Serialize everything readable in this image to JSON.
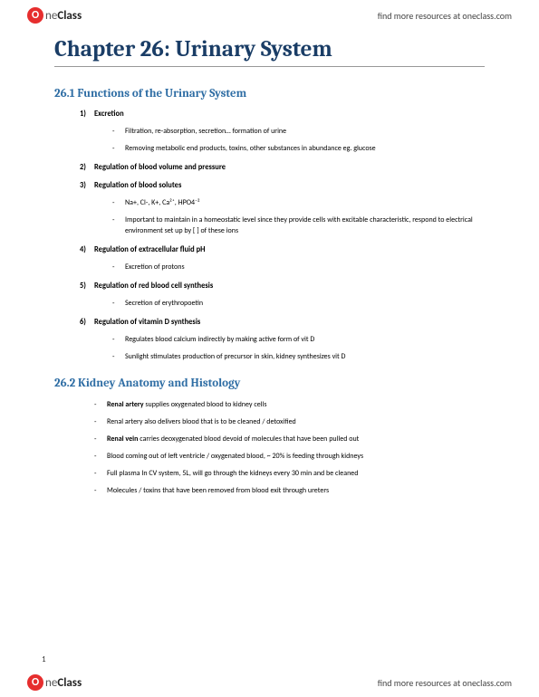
{
  "brand": {
    "icon_letter": "O",
    "name_prefix": "ne",
    "name_bold": "Class",
    "header_link": "find more resources at oneclass.com",
    "footer_link": "find more resources at oneclass.com"
  },
  "chapter_title": "Chapter 26: Urinary System",
  "section1": {
    "title": "26.1 Functions of the Urinary System",
    "items": [
      {
        "num": "1)",
        "label": "Excretion",
        "bullets": [
          "Filtration, re-absorption, secretion… formation of urine",
          "Removing metabolic end products, toxins, other substances in abundance eg. glucose"
        ]
      },
      {
        "num": "2)",
        "label": "Regulation of blood volume and pressure",
        "bullets": []
      },
      {
        "num": "3)",
        "label": "Regulation of blood solutes",
        "bullets": [
          "Na+, Cl-, K+, Ca²⁺, HPO4⁻²",
          "Important to maintain in a homeostatic level since they provide cells with excitable characteristic, respond to electrical environment set up by [ ] of these ions"
        ]
      },
      {
        "num": "4)",
        "label": "Regulation of extracellular fluid pH",
        "bullets": [
          "Excretion of protons"
        ]
      },
      {
        "num": "5)",
        "label": "Regulation of red blood cell synthesis",
        "bullets": [
          "Secretion of erythropoetin"
        ]
      },
      {
        "num": "6)",
        "label": "Regulation of vitamin D synthesis",
        "bullets": [
          "Regulates blood calcium indirectly by making active form of vit D",
          "Sunlight stimulates production of precursor in skin, kidney synthesizes vit D"
        ]
      }
    ]
  },
  "section2": {
    "title": "26.2 Kidney Anatomy and Histology",
    "bullets": [
      {
        "bold": "Renal artery",
        "rest": " supplies oxygenated blood to kidney cells"
      },
      {
        "bold": "",
        "rest": "Renal artery also delivers blood that is to be cleaned / detoxified"
      },
      {
        "bold": "Renal vein",
        "rest": " carries deoxygenated blood devoid of molecules that have been pulled out"
      },
      {
        "bold": "",
        "rest": "Blood coming out of left ventricle / oxygenated blood, ~ 20% is feeding through kidneys"
      },
      {
        "bold": "",
        "rest": "Full plasma In CV system, 5L, will go through the kidneys every 30 min and be cleaned"
      },
      {
        "bold": "",
        "rest": "Molecules / toxins that have been removed from blood exit through ureters"
      }
    ]
  },
  "page_number": "1",
  "colors": {
    "title_color": "#1a3d66",
    "section_color": "#2e6da4",
    "logo_bg": "#e62e2e"
  }
}
